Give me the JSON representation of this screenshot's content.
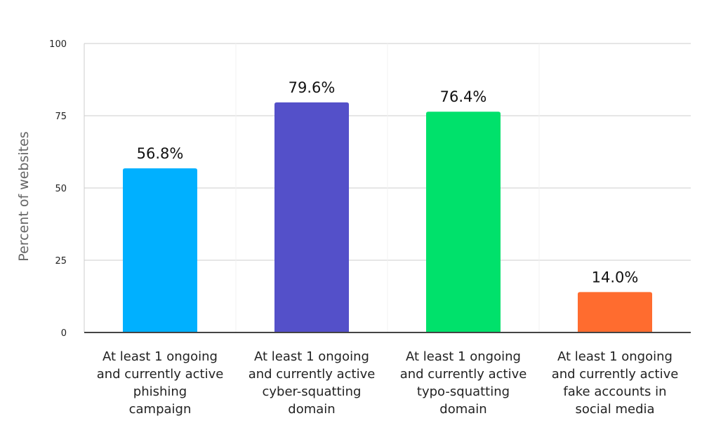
{
  "chart_data": {
    "type": "bar",
    "title": "",
    "xlabel": "",
    "ylabel": "Percent of websites",
    "ylim": [
      0,
      100
    ],
    "yticks": [
      0,
      25,
      50,
      75,
      100
    ],
    "grid": true,
    "categories": [
      [
        "At least 1 ongoing",
        "and currently active",
        "phishing",
        "campaign"
      ],
      [
        "At least 1 ongoing",
        "and currently active",
        "cyber-squatting",
        "domain"
      ],
      [
        "At least 1 ongoing",
        "and currently active",
        "typo-squatting",
        "domain"
      ],
      [
        "At least 1 ongoing",
        "and currently active",
        "fake accounts in",
        "social media"
      ]
    ],
    "values": [
      56.8,
      79.6,
      76.4,
      14.0
    ],
    "data_labels": [
      "56.8%",
      "79.6%",
      "76.4%",
      "14.0%"
    ],
    "colors": [
      "#00b0ff",
      "#5450c9",
      "#00e16b",
      "#ff6c2f"
    ]
  }
}
